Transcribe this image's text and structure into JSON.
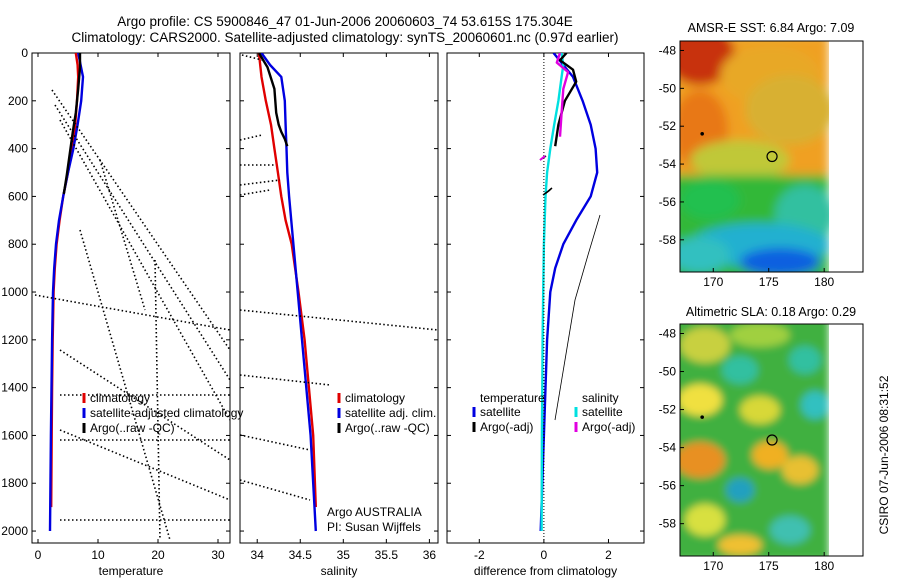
{
  "header": {
    "title_line1": "Argo profile: CS 5900846_47 01-Jun-2006 20060603_74 53.615S 175.304E",
    "title_line2": "Climatology: CARS2000. Satellite-adjusted climatology: synTS_20060601.nc (0.97d earlier)"
  },
  "side_stamp": "CSIRO 07-Jun-2006 08:31:52",
  "colors": {
    "climatology": "#e00000",
    "satellite": "#0000e0",
    "argo": "#000000",
    "satellite_sal": "#00e0e0",
    "argo_sal": "#e000e0"
  },
  "chart_data": [
    {
      "type": "line",
      "name": "temperature_panel",
      "xlabel": "temperature",
      "ylabel": "",
      "xlim": [
        -1,
        32
      ],
      "ylim": [
        2050,
        0
      ],
      "x_ticks": [
        "0",
        "10",
        "20",
        "30"
      ],
      "x_tick_values": [
        0,
        10,
        20,
        30
      ],
      "y_ticks": [
        "0",
        "200",
        "400",
        "600",
        "800",
        "1000",
        "1200",
        "1400",
        "1600",
        "1800",
        "2000"
      ],
      "y_tick_values": [
        0,
        200,
        400,
        600,
        800,
        1000,
        1200,
        1400,
        1600,
        1800,
        2000
      ],
      "legend": [
        "climatology",
        "satellite-adjusted climatology",
        "Argo(..raw -QC)"
      ],
      "series": [
        {
          "name": "climatology",
          "color": "#e00000",
          "x": [
            6.3,
            6.6,
            6.7,
            6.5,
            6.2,
            5.7,
            5.0,
            4.2,
            3.6,
            3.1,
            2.8,
            2.6,
            2.45,
            2.35,
            2.28,
            2.2
          ],
          "y": [
            0,
            50,
            100,
            200,
            300,
            400,
            500,
            600,
            700,
            800,
            900,
            1000,
            1200,
            1400,
            1600,
            1900
          ]
        },
        {
          "name": "satellite-adjusted climatology",
          "color": "#0000e0",
          "x": [
            6.7,
            7.1,
            7.5,
            7.2,
            6.6,
            5.9,
            5.0,
            4.2,
            3.5,
            3.0,
            2.7,
            2.5,
            2.35,
            2.25,
            2.15,
            2.0
          ],
          "y": [
            0,
            50,
            100,
            200,
            300,
            400,
            500,
            600,
            700,
            800,
            900,
            1000,
            1200,
            1400,
            1600,
            2000
          ]
        },
        {
          "name": "Argo(..raw -QC)",
          "color": "#000000",
          "x": [
            7.0,
            7.0,
            6.7,
            6.3,
            5.8,
            5.3,
            4.8,
            4.3
          ],
          "y": [
            0,
            60,
            150,
            250,
            330,
            420,
            510,
            590
          ]
        }
      ]
    },
    {
      "type": "line",
      "name": "salinity_panel",
      "xlabel": "salinity",
      "xlim": [
        33.8,
        36.1
      ],
      "ylim": [
        2050,
        0
      ],
      "x_ticks": [
        "34",
        "34.5",
        "35",
        "35.5",
        "36"
      ],
      "x_tick_values": [
        34,
        34.5,
        35,
        35.5,
        36
      ],
      "legend": [
        "climatology",
        "satellite adj. clim.",
        "Argo(..raw -QC)"
      ],
      "annotation": [
        "Argo AUSTRALIA",
        "PI: Susan Wijffels"
      ],
      "series": [
        {
          "name": "climatology",
          "color": "#e00000",
          "x": [
            34.02,
            34.05,
            34.1,
            34.16,
            34.2,
            34.24,
            34.28,
            34.33,
            34.4,
            34.48,
            34.55,
            34.6,
            34.65,
            34.68
          ],
          "y": [
            0,
            100,
            200,
            300,
            400,
            500,
            600,
            700,
            800,
            1000,
            1200,
            1400,
            1600,
            1900
          ]
        },
        {
          "name": "satellite adj. clim.",
          "color": "#0000e0",
          "x": [
            34.05,
            34.15,
            34.28,
            34.32,
            34.33,
            34.34,
            34.35,
            34.37,
            34.42,
            34.47,
            34.52,
            34.57,
            34.62,
            34.68
          ],
          "y": [
            0,
            50,
            100,
            200,
            300,
            400,
            500,
            600,
            800,
            1000,
            1200,
            1400,
            1600,
            2000
          ]
        },
        {
          "name": "Argo(..raw -QC)",
          "color": "#000000",
          "x": [
            34.02,
            34.12,
            34.2,
            34.22,
            34.25,
            34.28,
            34.32,
            34.35
          ],
          "y": [
            0,
            60,
            150,
            250,
            300,
            330,
            360,
            390
          ]
        }
      ]
    },
    {
      "type": "line",
      "name": "difference_panel",
      "xlabel": "difference from climatology",
      "xlim": [
        -3,
        3.1
      ],
      "ylim": [
        2050,
        0
      ],
      "x_ticks": [
        "-2",
        "0",
        "2"
      ],
      "x_tick_values": [
        -2,
        0,
        2
      ],
      "legend_temperature": [
        "temperature",
        "satellite",
        "Argo(-adj)"
      ],
      "legend_salinity": [
        "salinity",
        "satellite",
        "Argo(-adj)"
      ],
      "series": [
        {
          "name": "temperature satellite",
          "color": "#0000e0",
          "x": [
            0.3,
            0.6,
            0.9,
            1.2,
            1.45,
            1.6,
            1.65,
            1.45,
            1.0,
            0.6,
            0.35,
            0.2,
            0.1,
            0.05,
            0.0,
            -0.1
          ],
          "y": [
            0,
            50,
            100,
            200,
            300,
            400,
            500,
            600,
            700,
            800,
            900,
            1000,
            1200,
            1400,
            1600,
            2000
          ]
        },
        {
          "name": "salinity satellite",
          "color": "#00e0e0",
          "x": [
            0.55,
            0.6,
            0.55,
            0.45,
            0.32,
            0.2,
            0.1,
            0.05,
            0.0,
            -0.02,
            -0.04,
            -0.05,
            -0.06,
            -0.07
          ],
          "y": [
            0,
            50,
            100,
            200,
            300,
            400,
            500,
            600,
            800,
            1000,
            1200,
            1400,
            1600,
            2000
          ]
        },
        {
          "name": "temperature Argo(-adj)",
          "color": "#000000",
          "x": [
            0.7,
            0.5,
            0.9,
            1.0,
            0.65,
            0.45,
            0.35
          ],
          "y": [
            0,
            30,
            70,
            120,
            200,
            300,
            390
          ]
        },
        {
          "name": "salinity Argo(-adj)",
          "color": "#e000e0",
          "x": [
            0.5,
            0.4,
            0.75,
            0.6,
            0.55,
            0.5
          ],
          "y": [
            0,
            40,
            80,
            150,
            250,
            350
          ]
        }
      ]
    },
    {
      "type": "heatmap",
      "name": "sst_map",
      "title": "AMSR-E SST: 6.84 Argo: 7.09",
      "xlim": [
        167,
        183.5
      ],
      "ylim": [
        -59.7,
        -47.5
      ],
      "x_ticks": [
        "170",
        "175",
        "180"
      ],
      "x_tick_values": [
        170,
        175,
        180
      ],
      "y_ticks": [
        "-48",
        "-50",
        "-52",
        "-54",
        "-56",
        "-58"
      ],
      "y_tick_values": [
        -48,
        -50,
        -52,
        -54,
        -56,
        -58
      ],
      "profile_position": {
        "lon": 175.3,
        "lat": -53.6
      },
      "marker_position": {
        "lon": 169.0,
        "lat": -52.4
      }
    },
    {
      "type": "heatmap",
      "name": "sla_map",
      "title": "Altimetric SLA: 0.18 Argo: 0.29",
      "xlim": [
        167,
        183.5
      ],
      "ylim": [
        -59.7,
        -47.5
      ],
      "x_ticks": [
        "170",
        "175",
        "180"
      ],
      "x_tick_values": [
        170,
        175,
        180
      ],
      "y_ticks": [
        "-48",
        "-50",
        "-52",
        "-54",
        "-56",
        "-58"
      ],
      "y_tick_values": [
        -48,
        -50,
        -52,
        -54,
        -56,
        -58
      ],
      "profile_position": {
        "lon": 175.3,
        "lat": -53.6
      },
      "marker_position": {
        "lon": 169.0,
        "lat": -52.4
      }
    }
  ]
}
